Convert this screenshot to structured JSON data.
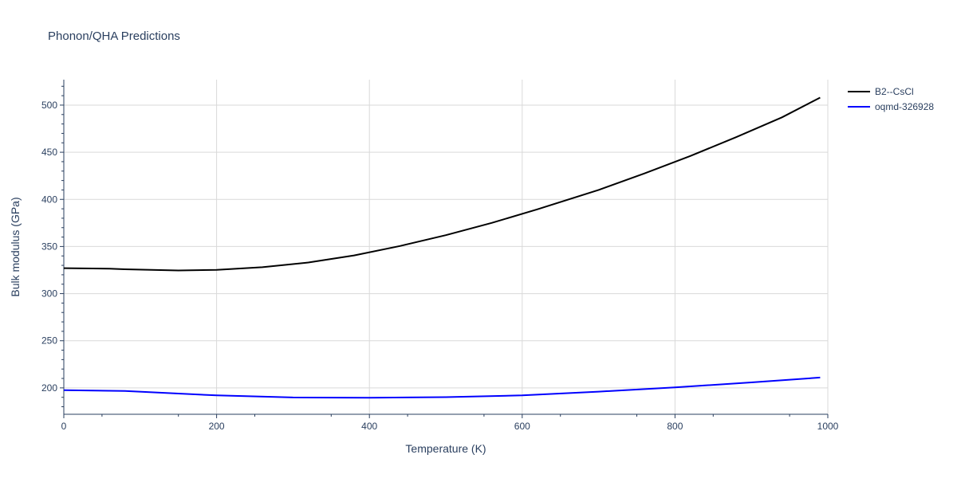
{
  "chart_data": {
    "type": "line",
    "title": "Phonon/QHA Predictions",
    "xlabel": "Temperature (K)",
    "ylabel": "Bulk modulus (GPa)",
    "xlim": [
      0,
      1000
    ],
    "ylim": [
      172,
      527
    ],
    "x_ticks": [
      0,
      200,
      400,
      600,
      800,
      1000
    ],
    "y_ticks": [
      200,
      250,
      300,
      350,
      400,
      450,
      500
    ],
    "grid": true,
    "legend_position": "top-right",
    "series": [
      {
        "name": "B2--CsCl",
        "color": "#000000",
        "x": [
          0,
          60,
          80,
          150,
          200,
          260,
          320,
          380,
          440,
          500,
          560,
          620,
          700,
          760,
          820,
          880,
          940,
          990
        ],
        "y": [
          327,
          326.5,
          325.8,
          324.6,
          325.2,
          328,
          333,
          340.5,
          350.5,
          362,
          375,
          389.5,
          410,
          427.5,
          446,
          466,
          487,
          508
        ]
      },
      {
        "name": "oqmd-326928",
        "color": "#0000ff",
        "x": [
          0,
          80,
          150,
          200,
          300,
          400,
          500,
          600,
          700,
          800,
          900,
          990
        ],
        "y": [
          197.5,
          196.8,
          194,
          192,
          189.8,
          189.5,
          190.2,
          192,
          196,
          200.5,
          205.8,
          211
        ]
      }
    ]
  }
}
